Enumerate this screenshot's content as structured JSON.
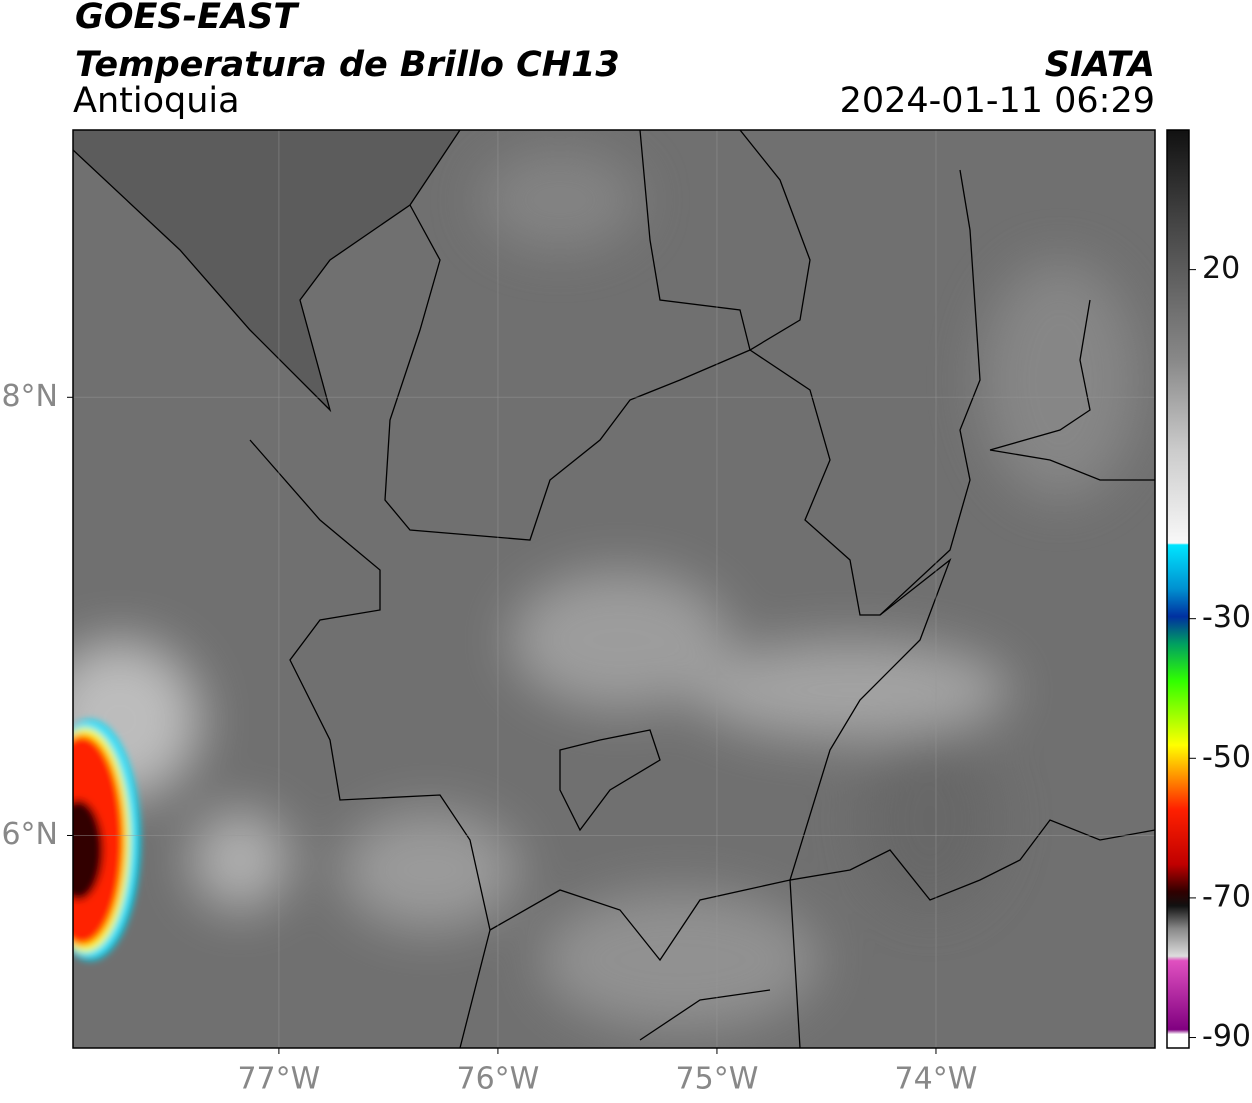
{
  "header": {
    "title": "GOES-EAST",
    "subtitle": "Temperatura de Brillo CH13",
    "region": "Antioquia",
    "source": "SIATA",
    "datetime": "2024-01-11 06:29"
  },
  "map": {
    "xlim": [
      -77.94,
      -73.0
    ],
    "ylim": [
      5.03,
      9.22
    ],
    "grid": true,
    "xticks": [
      {
        "value": -77,
        "label": "77°W"
      },
      {
        "value": -76,
        "label": "76°W"
      },
      {
        "value": -75,
        "label": "75°W"
      },
      {
        "value": -74,
        "label": "74°W"
      }
    ],
    "yticks": [
      {
        "value": 8,
        "label": "8°N"
      },
      {
        "value": 6,
        "label": "6°N"
      }
    ]
  },
  "colorbar": {
    "lim": [
      -91.5,
      40
    ],
    "ticks": [
      20,
      -30,
      -50,
      -70,
      -90
    ]
  }
}
